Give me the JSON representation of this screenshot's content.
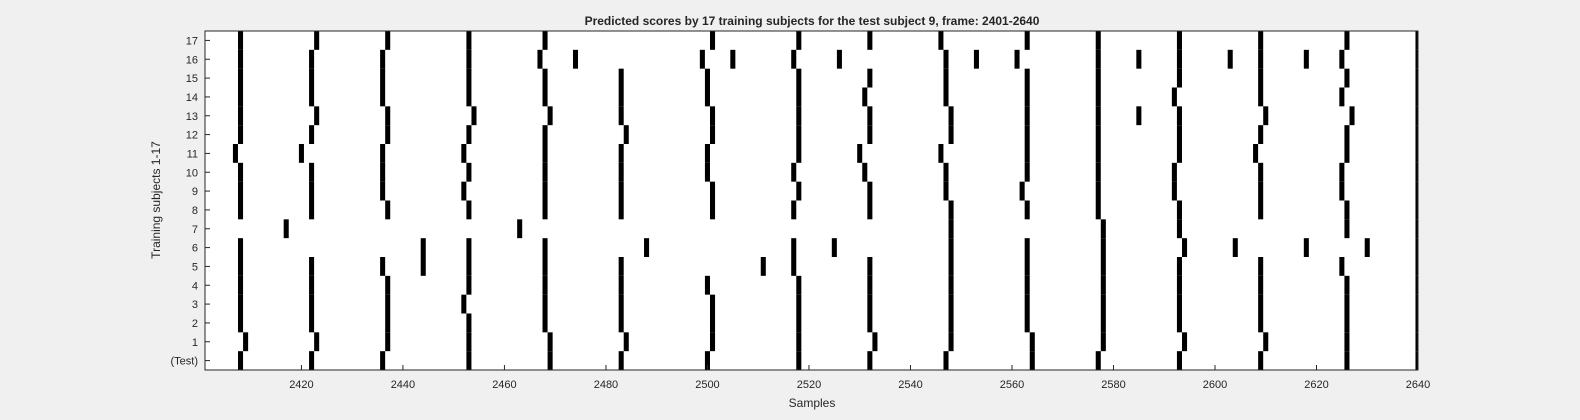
{
  "chart_data": {
    "type": "raster",
    "title": "Predicted scores by 17 training subjects for the test subject 9, frame: 2401-2640",
    "xlabel": "Samples",
    "ylabel": "Training subjects 1-17",
    "xlim": [
      2401,
      2640
    ],
    "xticks": [
      2420,
      2440,
      2460,
      2480,
      2500,
      2520,
      2540,
      2560,
      2580,
      2600,
      2620,
      2640
    ],
    "ylim": [
      -0.5,
      17.5
    ],
    "grid": false,
    "legend": "none",
    "row_labels": [
      "(Test)",
      "1",
      "2",
      "3",
      "4",
      "5",
      "6",
      "7",
      "8",
      "9",
      "10",
      "11",
      "12",
      "13",
      "14",
      "15",
      "16",
      "17"
    ],
    "series": [
      {
        "row": "(Test)",
        "events": [
          2408,
          2422,
          2436,
          2453,
          2469,
          2483,
          2500,
          2518,
          2532,
          2547,
          2564,
          2577,
          2593,
          2609,
          2626,
          2640
        ]
      },
      {
        "row": "1",
        "events": [
          2409,
          2423,
          2437,
          2453,
          2469,
          2484,
          2501,
          2518,
          2533,
          2548,
          2564,
          2578,
          2594,
          2610,
          2626,
          2640
        ]
      },
      {
        "row": "2",
        "events": [
          2408,
          2422,
          2437,
          2453,
          2468,
          2483,
          2501,
          2518,
          2532,
          2548,
          2563,
          2578,
          2593,
          2609,
          2626,
          2640
        ]
      },
      {
        "row": "3",
        "events": [
          2408,
          2422,
          2437,
          2452,
          2468,
          2483,
          2501,
          2518,
          2532,
          2548,
          2563,
          2578,
          2593,
          2609,
          2626,
          2640
        ]
      },
      {
        "row": "4",
        "events": [
          2408,
          2422,
          2437,
          2453,
          2468,
          2483,
          2500,
          2518,
          2532,
          2548,
          2563,
          2578,
          2593,
          2609,
          2626,
          2640
        ]
      },
      {
        "row": "5",
        "events": [
          2408,
          2422,
          2436,
          2444,
          2453,
          2468,
          2483,
          2511,
          2517,
          2532,
          2548,
          2563,
          2578,
          2593,
          2609,
          2625,
          2640
        ]
      },
      {
        "row": "6",
        "events": [
          2408,
          2444,
          2453,
          2468,
          2488,
          2517,
          2525,
          2548,
          2563,
          2578,
          2594,
          2604,
          2618,
          2630,
          2640
        ]
      },
      {
        "row": "7",
        "events": [
          2417,
          2463,
          2548,
          2578,
          2593,
          2626,
          2640
        ]
      },
      {
        "row": "8",
        "events": [
          2408,
          2422,
          2437,
          2453,
          2468,
          2483,
          2501,
          2517,
          2532,
          2548,
          2563,
          2577,
          2593,
          2609,
          2626,
          2640
        ]
      },
      {
        "row": "9",
        "events": [
          2408,
          2422,
          2436,
          2452,
          2468,
          2483,
          2501,
          2518,
          2532,
          2547,
          2562,
          2577,
          2592,
          2609,
          2625,
          2640
        ]
      },
      {
        "row": "10",
        "events": [
          2408,
          2422,
          2436,
          2453,
          2468,
          2483,
          2500,
          2517,
          2531,
          2547,
          2563,
          2577,
          2592,
          2609,
          2625,
          2640
        ]
      },
      {
        "row": "11",
        "events": [
          2407,
          2420,
          2436,
          2452,
          2468,
          2483,
          2500,
          2518,
          2530,
          2546,
          2563,
          2577,
          2593,
          2608,
          2626,
          2640
        ]
      },
      {
        "row": "12",
        "events": [
          2408,
          2422,
          2437,
          2453,
          2468,
          2484,
          2501,
          2518,
          2532,
          2548,
          2563,
          2577,
          2593,
          2609,
          2626,
          2640
        ]
      },
      {
        "row": "13",
        "events": [
          2408,
          2423,
          2437,
          2454,
          2469,
          2483,
          2501,
          2518,
          2532,
          2548,
          2563,
          2577,
          2585,
          2593,
          2610,
          2627,
          2640
        ]
      },
      {
        "row": "14",
        "events": [
          2408,
          2422,
          2436,
          2453,
          2468,
          2483,
          2500,
          2518,
          2531,
          2547,
          2563,
          2577,
          2592,
          2609,
          2625,
          2640
        ]
      },
      {
        "row": "15",
        "events": [
          2408,
          2422,
          2436,
          2453,
          2468,
          2483,
          2500,
          2518,
          2532,
          2547,
          2563,
          2577,
          2593,
          2609,
          2626,
          2640
        ]
      },
      {
        "row": "16",
        "events": [
          2408,
          2422,
          2436,
          2453,
          2467,
          2474,
          2499,
          2505,
          2517,
          2526,
          2547,
          2553,
          2561,
          2577,
          2585,
          2593,
          2603,
          2609,
          2618,
          2625,
          2640
        ]
      },
      {
        "row": "17",
        "events": [
          2408,
          2423,
          2437,
          2453,
          2468,
          2501,
          2518,
          2532,
          2546,
          2563,
          2577,
          2593,
          2609,
          2626,
          2640
        ]
      }
    ]
  }
}
